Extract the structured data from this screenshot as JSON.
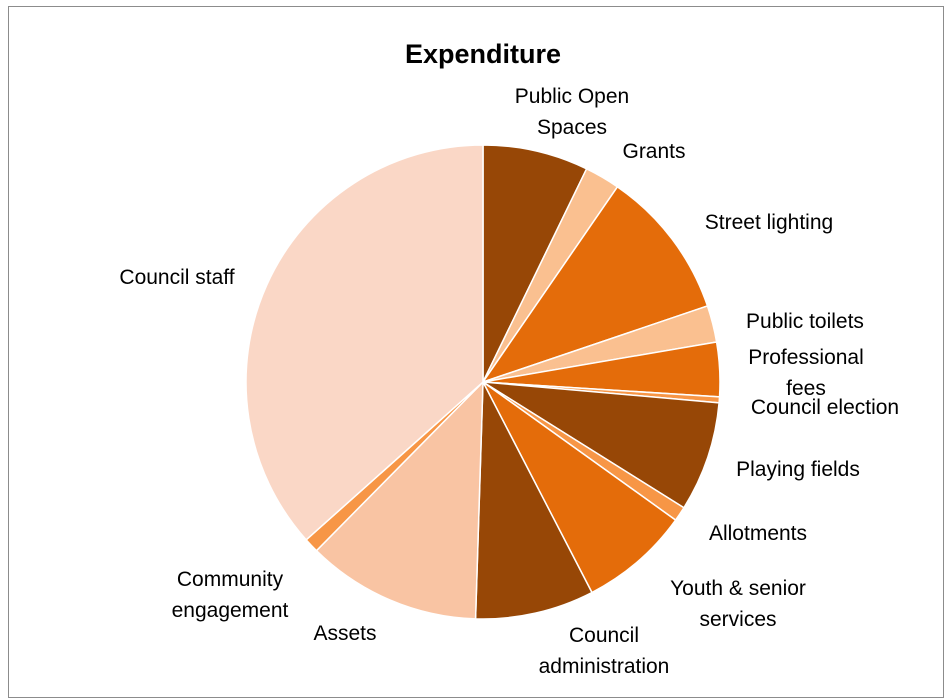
{
  "chart_data": {
    "type": "pie",
    "title": "Expenditure",
    "start_angle_deg": 0,
    "direction": "clockwise",
    "slices": [
      {
        "label": [
          "Public Open",
          "Spaces"
        ],
        "value": 7.2,
        "color": "#974706"
      },
      {
        "label": [
          "Grants"
        ],
        "value": 2.4,
        "color": "#FAC090"
      },
      {
        "label": [
          "Street lighting"
        ],
        "value": 10.2,
        "color": "#E46C0A"
      },
      {
        "label": [
          "Public toilets"
        ],
        "value": 2.5,
        "color": "#FAC090"
      },
      {
        "label": [
          "Professional",
          "fees"
        ],
        "value": 3.7,
        "color": "#E46C0A"
      },
      {
        "label": [
          "Council election"
        ],
        "value": 0.4,
        "color": "#F79646"
      },
      {
        "label": [
          "Playing fields"
        ],
        "value": 7.5,
        "color": "#974706"
      },
      {
        "label": [
          "Allotments"
        ],
        "value": 1.0,
        "color": "#F79646"
      },
      {
        "label": [
          "Youth & senior",
          "services"
        ],
        "value": 7.5,
        "color": "#E46C0A"
      },
      {
        "label": [
          "Council",
          "administration"
        ],
        "value": 8.1,
        "color": "#974706"
      },
      {
        "label": [
          "Assets"
        ],
        "value": 11.9,
        "color": "#F9C4A3"
      },
      {
        "label": [
          "Community",
          "engagement"
        ],
        "value": 1.0,
        "color": "#F79646"
      },
      {
        "label": [
          "Council staff"
        ],
        "value": 36.6,
        "color": "#FAD7C6"
      }
    ]
  }
}
